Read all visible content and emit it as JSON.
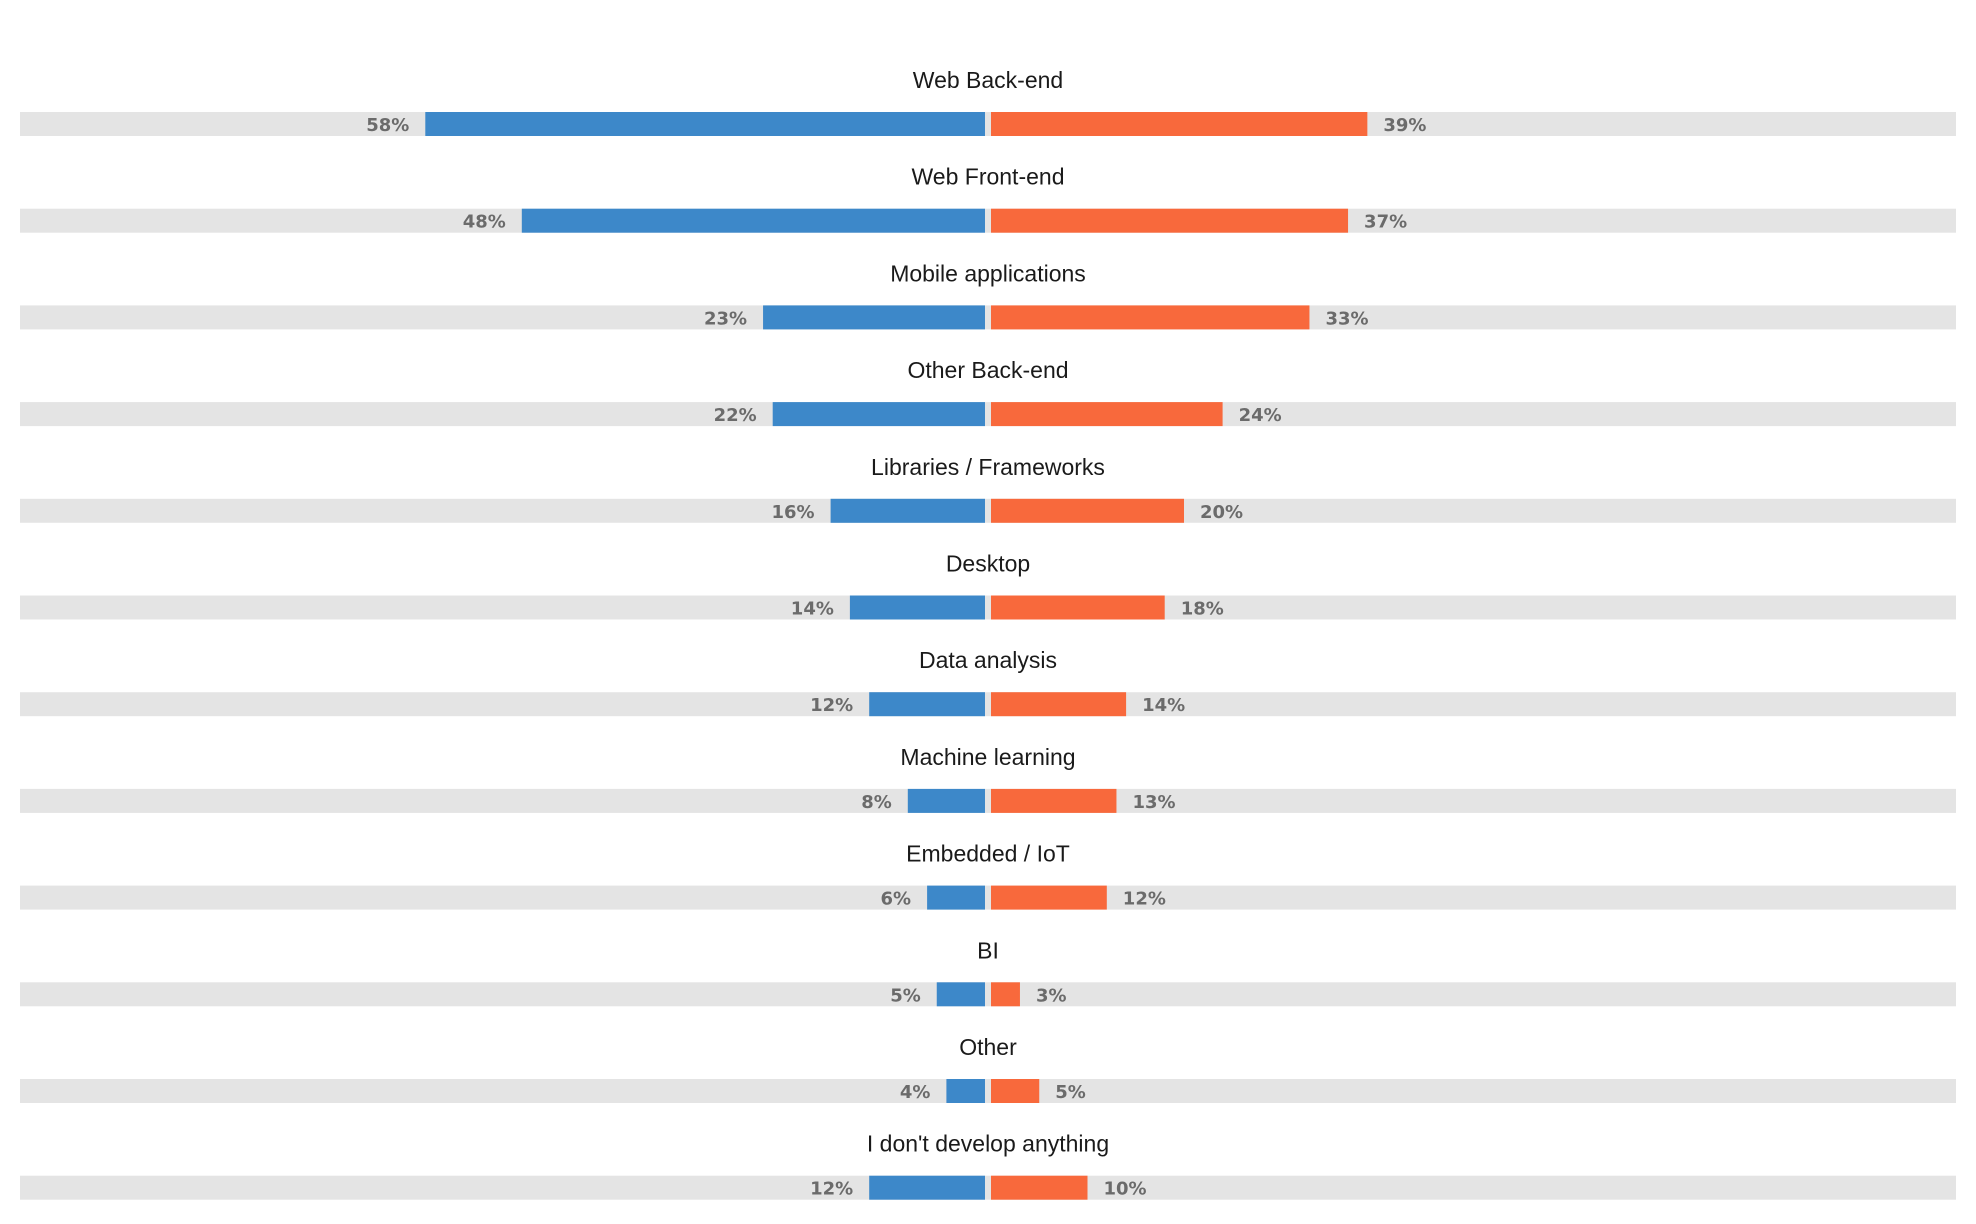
{
  "chart_data": {
    "type": "bar",
    "orientation": "diverging-horizontal",
    "categories": [
      "Web Back-end",
      "Web Front-end",
      "Mobile applications",
      "Other Back-end",
      "Libraries / Frameworks",
      "Desktop",
      "Data analysis",
      "Machine learning",
      "Embedded / IoT",
      "BI",
      "Other",
      "I don't develop anything"
    ],
    "series": [
      {
        "side": "left",
        "color": "#3d88c9",
        "values": [
          58,
          48,
          23,
          22,
          16,
          14,
          12,
          8,
          6,
          5,
          4,
          12
        ],
        "labels": [
          "58%",
          "48%",
          "23%",
          "22%",
          "16%",
          "14%",
          "12%",
          "8%",
          "6%",
          "5%",
          "4%",
          "12%"
        ]
      },
      {
        "side": "right",
        "color": "#f8693c",
        "values": [
          39,
          37,
          33,
          24,
          20,
          18,
          14,
          13,
          12,
          3,
          5,
          10
        ],
        "labels": [
          "39%",
          "37%",
          "33%",
          "24%",
          "20%",
          "18%",
          "14%",
          "13%",
          "12%",
          "3%",
          "5%",
          "10%"
        ]
      }
    ],
    "xlim": [
      0,
      100
    ],
    "track_color": "#e4e4e4",
    "legend": "none",
    "grid": false
  }
}
